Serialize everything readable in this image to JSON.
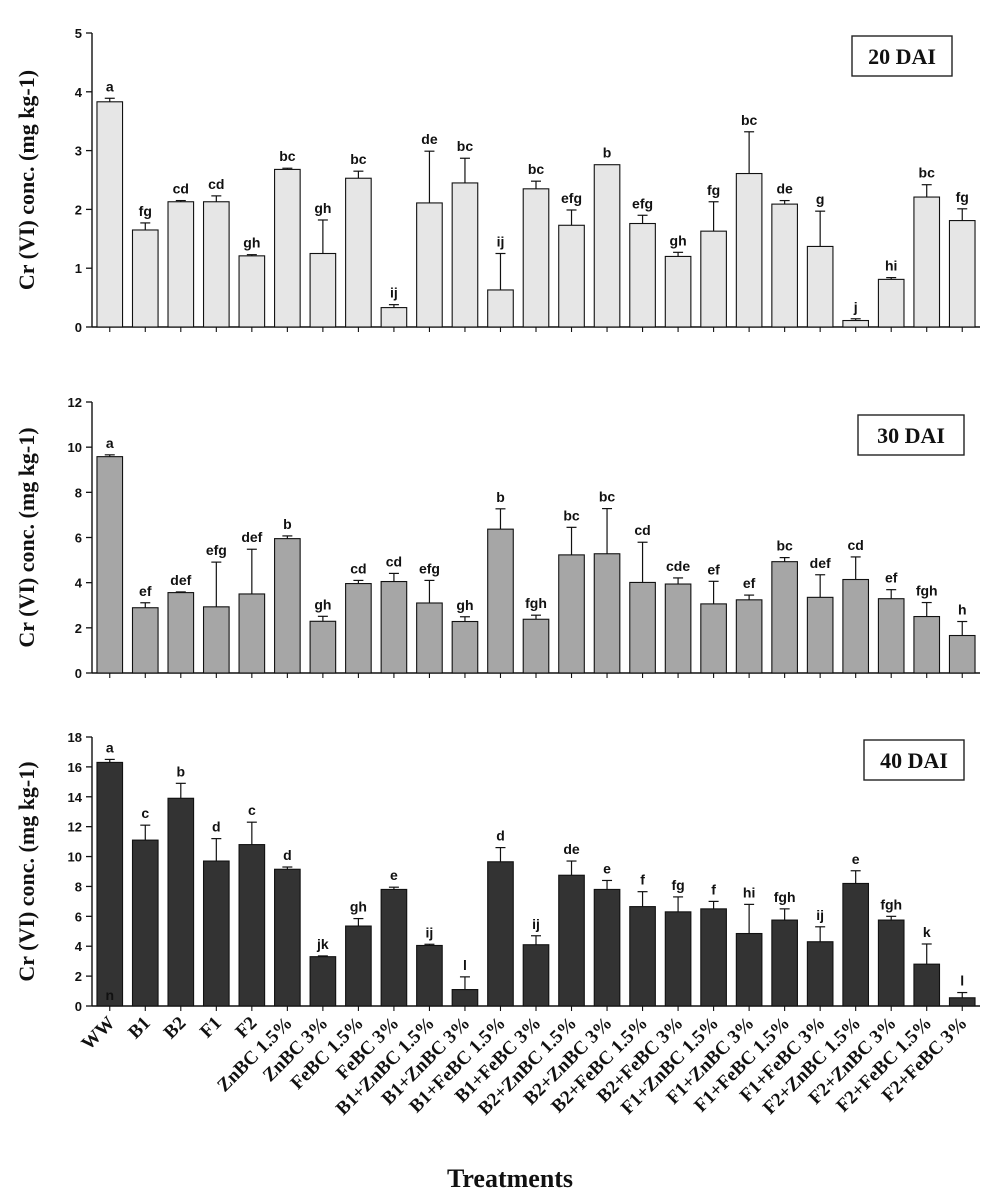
{
  "chart_data": [
    {
      "type": "bar",
      "title": "20 DAI",
      "ylabel": "Cr (VI) conc. (mg kg-1)",
      "ylim": [
        0,
        5
      ],
      "yticks": [
        0,
        1,
        2,
        3,
        4,
        5
      ],
      "bar_color": "#e6e6e6",
      "categories": [
        "WW",
        "B1",
        "B2",
        "F1",
        "F2",
        "ZnBC 1.5%",
        "ZnBC 3%",
        "FeBC 1.5%",
        "FeBC 3%",
        "B1+ZnBC 1.5%",
        "B1+ZnBC 3%",
        "B1+FeBC 1.5%",
        "B1+FeBC 3%",
        "B2+ZnBC 1.5%",
        "B2+ZnBC 3%",
        "B2+FeBC 1.5%",
        "B2+FeBC 3%",
        "F1+ZnBC 1.5%",
        "F1+ZnBC 3%",
        "F1+FeBC 1.5%",
        "F1+FeBC 3%",
        "F2+ZnBC 1.5%",
        "F2+ZnBC 3%",
        "F2+FeBC 1.5%",
        "F2+FeBC 3%"
      ],
      "values": [
        3.83,
        1.65,
        2.13,
        2.13,
        1.21,
        2.68,
        1.25,
        2.53,
        0.33,
        2.11,
        2.45,
        0.63,
        2.35,
        1.73,
        2.76,
        1.76,
        1.2,
        1.63,
        2.61,
        2.09,
        1.37,
        0.11,
        0.81,
        2.21,
        1.81
      ],
      "errors": [
        0.06,
        0.12,
        0.02,
        0.1,
        0.02,
        0.02,
        0.57,
        0.12,
        0.05,
        0.88,
        0.42,
        0.62,
        0.13,
        0.26,
        0,
        0.14,
        0.07,
        0.5,
        0.71,
        0.06,
        0.6,
        0.03,
        0.03,
        0.21,
        0.2
      ],
      "significance": [
        "a",
        "fg",
        "cd",
        "cd",
        "gh",
        "bc",
        "gh",
        "bc",
        "ij",
        "de",
        "bc",
        "ij",
        "bc",
        "efg",
        "b",
        "efg",
        "gh",
        "fg",
        "bc",
        "de",
        "g",
        "j",
        "hi",
        "bc",
        "fg"
      ]
    },
    {
      "type": "bar",
      "title": "30 DAI",
      "ylabel": "Cr (VI) conc. (mg kg-1)",
      "ylim": [
        0,
        12
      ],
      "yticks": [
        0,
        2,
        4,
        6,
        8,
        10,
        12
      ],
      "bar_color": "#a6a6a6",
      "categories": [
        "WW",
        "B1",
        "B2",
        "F1",
        "F2",
        "ZnBC 1.5%",
        "ZnBC 3%",
        "FeBC 1.5%",
        "FeBC 3%",
        "B1+ZnBC 1.5%",
        "B1+ZnBC 3%",
        "B1+FeBC 1.5%",
        "B1+FeBC 3%",
        "B2+ZnBC 1.5%",
        "B2+ZnBC 3%",
        "B2+FeBC 1.5%",
        "B2+FeBC 3%",
        "F1+ZnBC 1.5%",
        "F1+ZnBC 3%",
        "F1+FeBC 1.5%",
        "F1+FeBC 3%",
        "F2+ZnBC 1.5%",
        "F2+ZnBC 3%",
        "F2+FeBC 1.5%",
        "F2+FeBC 3%"
      ],
      "values": [
        9.58,
        2.89,
        3.56,
        2.93,
        3.5,
        5.95,
        2.29,
        3.96,
        4.05,
        3.1,
        2.28,
        6.37,
        2.38,
        5.23,
        5.28,
        4.01,
        3.94,
        3.06,
        3.24,
        4.93,
        3.35,
        4.14,
        3.29,
        2.5,
        1.66
      ],
      "errors": [
        0.08,
        0.22,
        0.03,
        1.98,
        1.98,
        0.12,
        0.22,
        0.14,
        0.36,
        1.0,
        0.21,
        0.9,
        0.18,
        1.22,
        2.0,
        1.78,
        0.27,
        1.0,
        0.21,
        0.18,
        1.0,
        1.0,
        0.4,
        0.62,
        0.62
      ],
      "significance": [
        "a",
        "ef",
        "def",
        "efg",
        "def",
        "b",
        "gh",
        "cd",
        "cd",
        "efg",
        "gh",
        "b",
        "fgh",
        "bc",
        "bc",
        "cd",
        "cde",
        "ef",
        "ef",
        "bc",
        "def",
        "cd",
        "ef",
        "fgh",
        "h"
      ]
    },
    {
      "type": "bar",
      "title": "40 DAI",
      "ylabel": "Cr (VI) conc. (mg kg-1)",
      "ylim": [
        0,
        18
      ],
      "yticks": [
        0,
        2,
        4,
        6,
        8,
        10,
        12,
        14,
        16,
        18
      ],
      "bar_color": "#333333",
      "xlabel": "Treatments",
      "categories": [
        "WW",
        "B1",
        "B2",
        "F1",
        "F2",
        "ZnBC 1.5%",
        "ZnBC 3%",
        "FeBC 1.5%",
        "FeBC 3%",
        "B1+ZnBC 1.5%",
        "B1+ZnBC 3%",
        "B1+FeBC 1.5%",
        "B1+FeBC 3%",
        "B2+ZnBC 1.5%",
        "B2+ZnBC 3%",
        "B2+FeBC 1.5%",
        "B2+FeBC 3%",
        "F1+ZnBC 1.5%",
        "F1+ZnBC 3%",
        "F1+FeBC 1.5%",
        "F1+FeBC 3%",
        "F2+ZnBC 1.5%",
        "F2+ZnBC 3%",
        "F2+FeBC 1.5%",
        "F2+FeBC 3%"
      ],
      "values": [
        16.3,
        11.1,
        13.9,
        9.7,
        10.8,
        9.15,
        3.3,
        5.35,
        7.8,
        4.05,
        1.1,
        9.65,
        4.1,
        8.75,
        7.8,
        6.65,
        6.3,
        6.5,
        4.85,
        5.75,
        4.3,
        8.2,
        5.75,
        2.8,
        0.55
      ],
      "errors": [
        0.2,
        1.0,
        1.0,
        1.5,
        1.5,
        0.15,
        0.05,
        0.5,
        0.15,
        0.08,
        0.85,
        0.95,
        0.6,
        0.95,
        0.6,
        1.0,
        1.0,
        0.5,
        1.95,
        0.75,
        1.0,
        0.85,
        0.25,
        1.35,
        0.35
      ],
      "significance": [
        "a",
        "c",
        "b",
        "d",
        "c",
        "d",
        "jk",
        "gh",
        "e",
        "ij",
        "l",
        "d",
        "ij",
        "de",
        "e",
        "f",
        "fg",
        "f",
        "hi",
        "fgh",
        "ij",
        "e",
        "fgh",
        "k",
        "l"
      ],
      "extra_label": "n"
    }
  ]
}
